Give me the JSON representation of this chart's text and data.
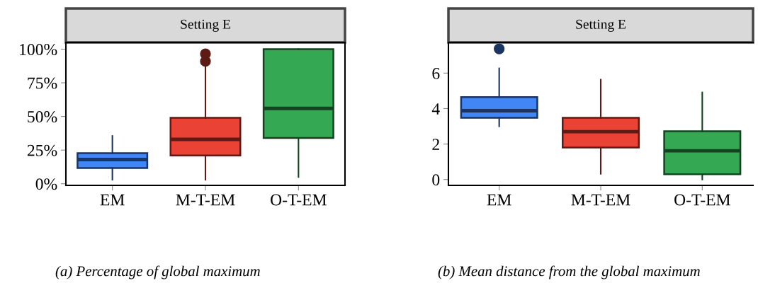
{
  "chart_data": [
    {
      "type": "box",
      "title": "Setting E",
      "categories": [
        "EM",
        "M-T-EM",
        "O-T-EM"
      ],
      "colors": [
        "#4285f4",
        "#ea4335",
        "#34a853"
      ],
      "boxes": [
        {
          "low": 3,
          "q1": 11.7,
          "median": 18,
          "q3": 22.7,
          "high": 35.5
        },
        {
          "low": 3,
          "q1": 21,
          "median": 33,
          "q3": 49,
          "high": 88,
          "outliers": [
            91,
            96.5
          ]
        },
        {
          "low": 5,
          "q1": 34,
          "median": 56,
          "q3": 100,
          "high": 100
        }
      ],
      "ylim": [
        -1.2,
        105
      ],
      "yticks": [
        {
          "value": 0,
          "label": "0%"
        },
        {
          "value": 25,
          "label": "25%"
        },
        {
          "value": 50,
          "label": "50%"
        },
        {
          "value": 75,
          "label": "75%"
        },
        {
          "value": 100,
          "label": "100%"
        }
      ],
      "grid": false,
      "annotations": [
        "(a) Percentage of global maximum"
      ]
    },
    {
      "type": "box",
      "title": "Setting E",
      "categories": [
        "EM",
        "M-T-EM",
        "O-T-EM"
      ],
      "colors": [
        "#4285f4",
        "#ea4335",
        "#34a853"
      ],
      "boxes": [
        {
          "low": 3.0,
          "q1": 3.48,
          "median": 3.88,
          "q3": 4.65,
          "high": 6.27,
          "outliers": [
            7.37
          ]
        },
        {
          "low": 0.32,
          "q1": 1.8,
          "median": 2.7,
          "q3": 3.48,
          "high": 5.63
        },
        {
          "low": 0,
          "q1": 0.3,
          "median": 1.62,
          "q3": 2.72,
          "high": 4.91
        }
      ],
      "ylim": [
        -0.33,
        7.73
      ],
      "yticks": [
        0,
        2,
        4,
        6
      ],
      "grid": false,
      "annotations": [
        "(b) Mean distance from the global maximum"
      ]
    }
  ]
}
